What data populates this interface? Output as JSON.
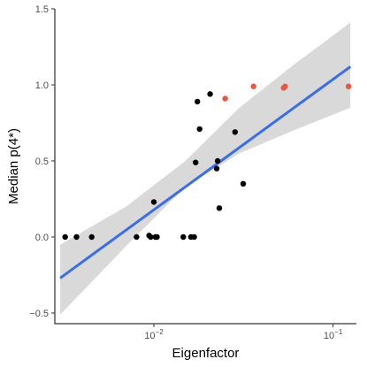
{
  "chart_data": {
    "type": "scatter",
    "title": "",
    "xlabel": "Eigenfactor",
    "ylabel": "Median p(4*)",
    "x_scale": "log10",
    "xlim": [
      0.0028,
      0.135
    ],
    "ylim": [
      -0.57,
      1.5
    ],
    "x_ticks": [
      {
        "value": 0.01,
        "base": "10",
        "exp": "−2"
      },
      {
        "value": 0.1,
        "base": "10",
        "exp": "−1"
      }
    ],
    "y_ticks": [
      {
        "value": -0.5,
        "label": "−0.5"
      },
      {
        "value": 0.0,
        "label": "0.0"
      },
      {
        "value": 0.5,
        "label": "0.5"
      },
      {
        "value": 1.0,
        "label": "1.0"
      },
      {
        "value": 1.5,
        "label": "1.5"
      }
    ],
    "grid": false,
    "legend": "none",
    "colors": {
      "points": "#000000",
      "highlight": "#e8573f",
      "fit_line": "#3a6ee8",
      "confidence_band": "#d9d9d9"
    },
    "series": [
      {
        "color": "#000000",
        "points": [
          {
            "x": 0.0032,
            "y": 0.0
          },
          {
            "x": 0.0037,
            "y": 0.0
          },
          {
            "x": 0.0045,
            "y": 0.0
          },
          {
            "x": 0.008,
            "y": 0.0
          },
          {
            "x": 0.0094,
            "y": 0.01
          },
          {
            "x": 0.0096,
            "y": 0.0
          },
          {
            "x": 0.01,
            "y": 0.23
          },
          {
            "x": 0.0102,
            "y": 0.0
          },
          {
            "x": 0.0104,
            "y": 0.0
          },
          {
            "x": 0.0146,
            "y": 0.0
          },
          {
            "x": 0.0161,
            "y": 0.0
          },
          {
            "x": 0.0168,
            "y": 0.0
          },
          {
            "x": 0.0171,
            "y": 0.49
          },
          {
            "x": 0.0175,
            "y": 0.89
          },
          {
            "x": 0.018,
            "y": 0.71
          },
          {
            "x": 0.0206,
            "y": 0.94
          },
          {
            "x": 0.0224,
            "y": 0.45
          },
          {
            "x": 0.0227,
            "y": 0.5
          },
          {
            "x": 0.0232,
            "y": 0.19
          },
          {
            "x": 0.0284,
            "y": 0.69
          },
          {
            "x": 0.0315,
            "y": 0.35
          }
        ]
      },
      {
        "color": "#e8573f",
        "points": [
          {
            "x": 0.025,
            "y": 0.91
          },
          {
            "x": 0.036,
            "y": 0.99
          },
          {
            "x": 0.053,
            "y": 0.98
          },
          {
            "x": 0.054,
            "y": 0.99
          },
          {
            "x": 0.122,
            "y": 0.99
          }
        ]
      }
    ],
    "fit": {
      "type": "linear-on-log-x",
      "points": [
        {
          "x": 0.003,
          "y": -0.27
        },
        {
          "x": 0.125,
          "y": 1.12
        }
      ],
      "band": [
        {
          "x": 0.003,
          "lower": -0.51,
          "upper": -0.05
        },
        {
          "x": 0.007,
          "lower": -0.06,
          "upper": 0.2
        },
        {
          "x": 0.015,
          "lower": 0.33,
          "upper": 0.5
        },
        {
          "x": 0.03,
          "lower": 0.55,
          "upper": 0.85
        },
        {
          "x": 0.06,
          "lower": 0.7,
          "upper": 1.13
        },
        {
          "x": 0.125,
          "lower": 0.85,
          "upper": 1.41
        }
      ]
    }
  }
}
